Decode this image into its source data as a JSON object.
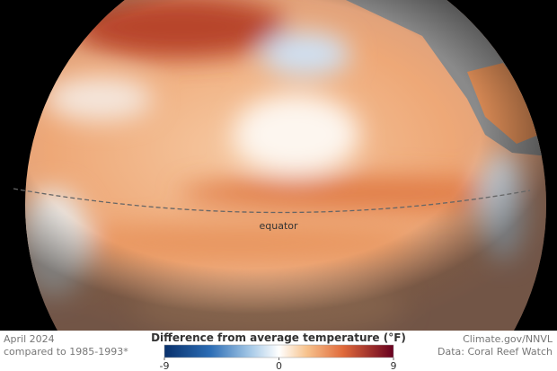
{
  "map": {
    "label": "equator"
  },
  "footer": {
    "date": "April 2024",
    "baseline": "compared to 1985-1993*",
    "credit": "Climate.gov/NNVL",
    "source": "Data: Coral Reef Watch"
  },
  "legend": {
    "title": "Difference from average temperature (°F)",
    "ticks": [
      -9,
      0,
      9
    ]
  }
}
